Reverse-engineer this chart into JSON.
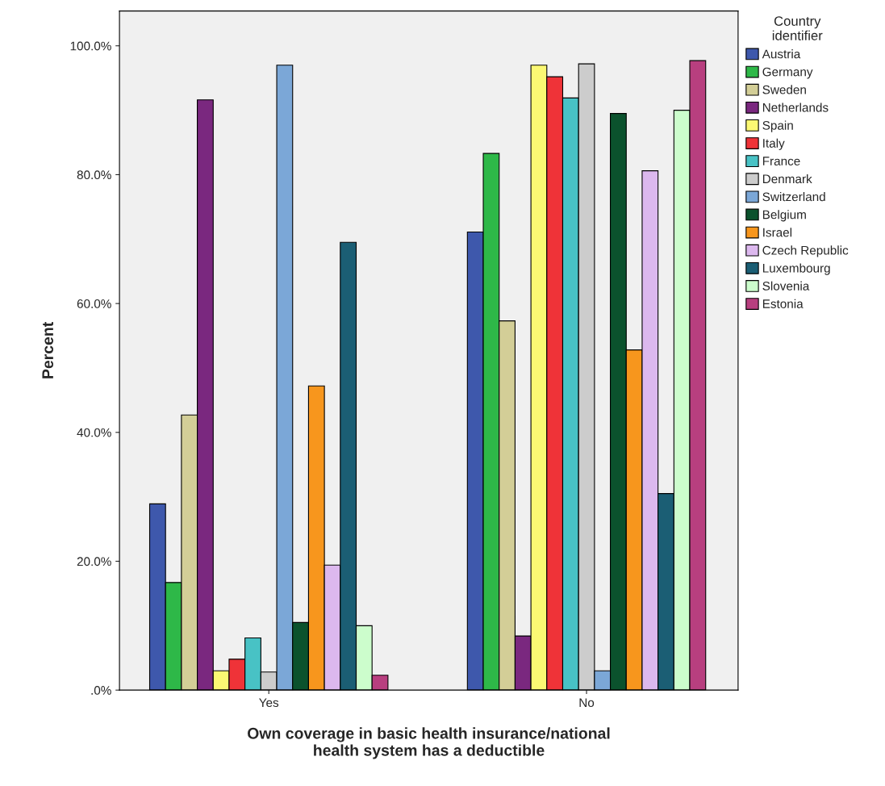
{
  "chart_data": {
    "type": "bar",
    "xlabel": "Own coverage in basic health insurance/national\nhealth system has a deductible",
    "ylabel": "Percent",
    "legend_title": "Country\nidentifier",
    "categories": [
      "Yes",
      "No"
    ],
    "series": [
      {
        "name": "Austria",
        "color": "#3e58ac",
        "values": [
          28.9,
          71.1
        ]
      },
      {
        "name": "Germany",
        "color": "#2eb848",
        "values": [
          16.7,
          83.3
        ]
      },
      {
        "name": "Sweden",
        "color": "#d3ce97",
        "values": [
          42.7,
          57.3
        ]
      },
      {
        "name": "Netherlands",
        "color": "#7a287f",
        "values": [
          91.6,
          8.4
        ]
      },
      {
        "name": "Spain",
        "color": "#fbf873",
        "values": [
          3.0,
          97.0
        ]
      },
      {
        "name": "Italy",
        "color": "#ef3338",
        "values": [
          4.8,
          95.2
        ]
      },
      {
        "name": "France",
        "color": "#48c2c5",
        "values": [
          8.1,
          91.9
        ]
      },
      {
        "name": "Denmark",
        "color": "#cccccc",
        "values": [
          2.8,
          97.2
        ]
      },
      {
        "name": "Switzerland",
        "color": "#7ba7d7",
        "values": [
          97.0,
          3.0
        ]
      },
      {
        "name": "Belgium",
        "color": "#0b522d",
        "values": [
          10.5,
          89.5
        ]
      },
      {
        "name": "Israel",
        "color": "#f7961d",
        "values": [
          47.2,
          52.8
        ]
      },
      {
        "name": "Czech Republic",
        "color": "#dcb8ee",
        "values": [
          19.4,
          80.6
        ]
      },
      {
        "name": "Luxembourg",
        "color": "#1b5e74",
        "values": [
          69.5,
          30.5
        ]
      },
      {
        "name": "Slovenia",
        "color": "#ccfdcc",
        "values": [
          10.0,
          90.0
        ]
      },
      {
        "name": "Estonia",
        "color": "#b83f7f",
        "values": [
          2.3,
          97.7
        ]
      }
    ],
    "ylim": [
      0,
      105.4
    ],
    "yticks": [
      {
        "value": 0,
        "label": ".0%"
      },
      {
        "value": 20,
        "label": "20.0%"
      },
      {
        "value": 40,
        "label": "40.0%"
      },
      {
        "value": 60,
        "label": "60.0%"
      },
      {
        "value": 80,
        "label": "80.0%"
      },
      {
        "value": 100,
        "label": "100.0%"
      }
    ],
    "grid": false,
    "legend": "right"
  }
}
